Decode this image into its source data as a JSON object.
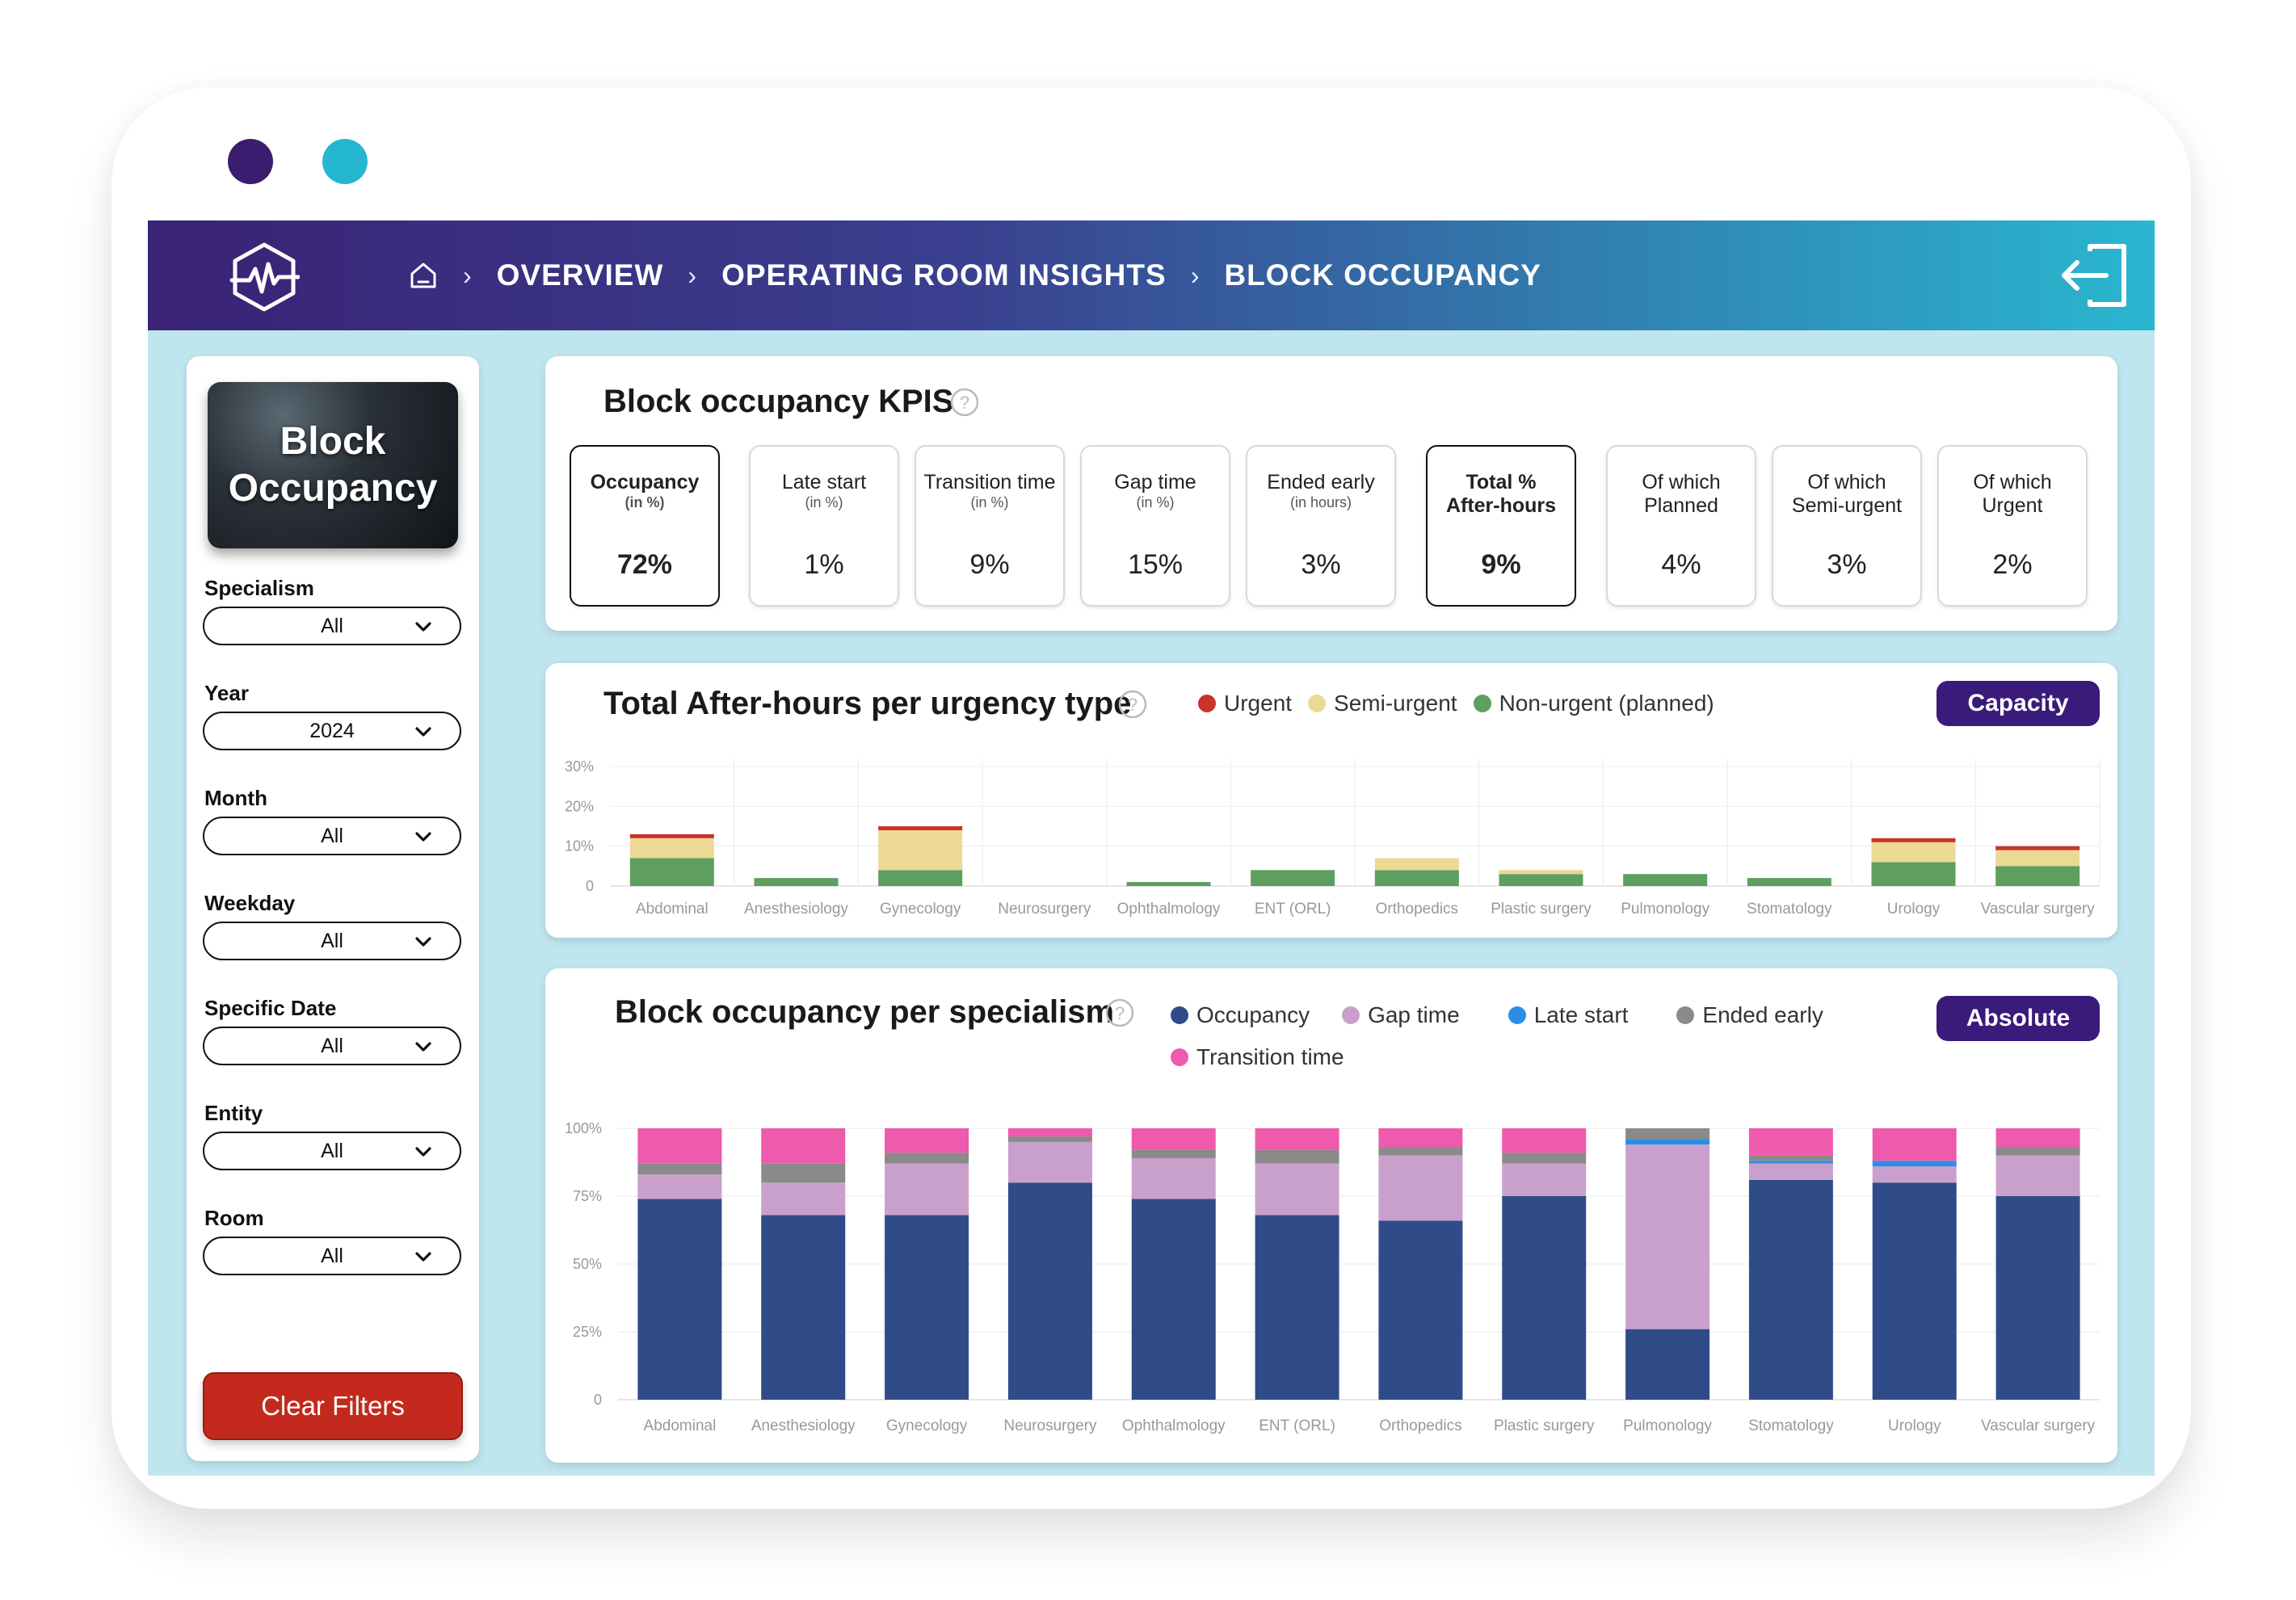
{
  "breadcrumb": [
    "OVERVIEW",
    "OPERATING ROOM INSIGHTS",
    "BLOCK OCCUPANCY"
  ],
  "sidebar": {
    "hero_title": "Block\nOccupancy",
    "filters": [
      {
        "label": "Specialism",
        "value": "All"
      },
      {
        "label": "Year",
        "value": "2024"
      },
      {
        "label": "Month",
        "value": "All"
      },
      {
        "label": "Weekday",
        "value": "All"
      },
      {
        "label": "Specific Date",
        "value": "All"
      },
      {
        "label": "Entity",
        "value": "All"
      },
      {
        "label": "Room",
        "value": "All"
      }
    ],
    "clear_label": "Clear Filters"
  },
  "kpi": {
    "title": "Block occupancy KPIS",
    "cards": [
      {
        "title": "Occupancy",
        "sub": "(in %)",
        "value": "72%",
        "highlight": true
      },
      {
        "title": "Late start",
        "sub": "(in %)",
        "value": "1%",
        "highlight": false
      },
      {
        "title": "Transition time",
        "sub": "(in %)",
        "value": "9%",
        "highlight": false
      },
      {
        "title": "Gap time",
        "sub": "(in %)",
        "value": "15%",
        "highlight": false
      },
      {
        "title": "Ended early",
        "sub": "(in hours)",
        "value": "3%",
        "highlight": false
      },
      {
        "title": "Total %\nAfter-hours",
        "sub": "",
        "value": "9%",
        "highlight": true
      },
      {
        "title": "Of which\nPlanned",
        "sub": "",
        "value": "4%",
        "highlight": false
      },
      {
        "title": "Of which\nSemi-urgent",
        "sub": "",
        "value": "3%",
        "highlight": false
      },
      {
        "title": "Of which\nUrgent",
        "sub": "",
        "value": "2%",
        "highlight": false
      }
    ]
  },
  "afterhours": {
    "title": "Total After-hours per urgency type",
    "button": "Capacity",
    "colors": {
      "urgent": "#c8332a",
      "semi": "#ecd994",
      "non": "#5e9e5e"
    }
  },
  "occupancy": {
    "title": "Block occupancy per specialism",
    "button": "Absolute",
    "colors": {
      "occupancy": "#2f4c88",
      "gap": "#c9a0cc",
      "late": "#2a8ee8",
      "ended": "#8a8a8a",
      "transition": "#ee5aac"
    }
  },
  "chart_data": [
    {
      "type": "bar",
      "stacked": true,
      "title": "Total After-hours per urgency type",
      "categories": [
        "Abdominal",
        "Anesthesiology",
        "Gynecology",
        "Neurosurgery",
        "Ophthalmology",
        "ENT (ORL)",
        "Orthopedics",
        "Plastic surgery",
        "Pulmonology",
        "Stomatology",
        "Urology",
        "Vascular surgery"
      ],
      "series": [
        {
          "name": "Non-urgent (planned)",
          "values": [
            7,
            2,
            4,
            0,
            1,
            4,
            4,
            3,
            3,
            2,
            6,
            5
          ]
        },
        {
          "name": "Semi-urgent",
          "values": [
            5,
            0,
            10,
            0,
            0,
            0,
            3,
            1,
            0,
            0,
            5,
            4
          ]
        },
        {
          "name": "Urgent",
          "values": [
            1,
            0,
            1,
            0,
            0,
            0,
            0,
            0,
            0,
            0,
            1,
            1
          ]
        }
      ],
      "yticks": [
        "0",
        "10%",
        "20%",
        "30%"
      ],
      "ylim": [
        0,
        30
      ],
      "legend": "top"
    },
    {
      "type": "bar",
      "stacked": true,
      "title": "Block occupancy per specialism",
      "categories": [
        "Abdominal",
        "Anesthesiology",
        "Gynecology",
        "Neurosurgery",
        "Ophthalmology",
        "ENT (ORL)",
        "Orthopedics",
        "Plastic surgery",
        "Pulmonology",
        "Stomatology",
        "Urology",
        "Vascular surgery"
      ],
      "series": [
        {
          "name": "Occupancy",
          "values": [
            74,
            68,
            68,
            80,
            74,
            68,
            66,
            75,
            26,
            81,
            80,
            75
          ]
        },
        {
          "name": "Gap time",
          "values": [
            9,
            12,
            19,
            15,
            15,
            19,
            24,
            12,
            68,
            6,
            6,
            15
          ]
        },
        {
          "name": "Late start",
          "values": [
            0,
            0,
            0,
            0,
            0,
            0,
            0,
            0,
            2,
            1,
            2,
            0
          ]
        },
        {
          "name": "Ended early",
          "values": [
            4,
            7,
            4,
            2,
            3,
            5,
            3,
            4,
            4,
            2,
            0,
            3
          ]
        },
        {
          "name": "Transition time",
          "values": [
            13,
            13,
            9,
            3,
            8,
            8,
            7,
            9,
            0,
            10,
            12,
            7
          ]
        }
      ],
      "yticks": [
        "0",
        "25%",
        "50%",
        "75%",
        "100%"
      ],
      "ylim": [
        0,
        100
      ],
      "legend": "top"
    }
  ]
}
